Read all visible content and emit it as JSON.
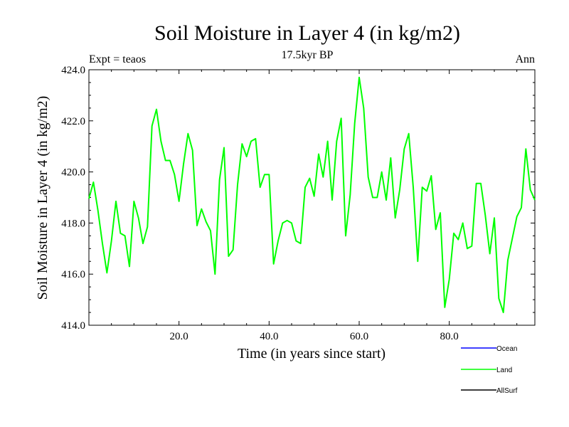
{
  "chart_data": {
    "type": "line",
    "title": "Soil Moisture in Layer 4 (in kg/m2)",
    "subtitle": "17.5kyr BP",
    "left_label": "Expt = teaos",
    "right_label": "Ann",
    "xlabel": "Time (in years since start)",
    "ylabel": "Soil Moisture in Layer 4 (in kg/m2)",
    "xlim": [
      0,
      99
    ],
    "ylim": [
      414,
      424
    ],
    "x_ticks": [
      20,
      40,
      60,
      80
    ],
    "x_tick_labels": [
      "20.0",
      "40.0",
      "60.0",
      "80.0"
    ],
    "y_ticks": [
      414,
      416,
      418,
      420,
      422,
      424
    ],
    "y_tick_labels": [
      "414.0",
      "416.0",
      "418.0",
      "420.0",
      "422.0",
      "424.0"
    ],
    "legend": [
      {
        "name": "Ocean",
        "color": "#0000ff"
      },
      {
        "name": "Land",
        "color": "#00ff00"
      },
      {
        "name": "AllSurf",
        "color": "#000000"
      }
    ],
    "series": [
      {
        "name": "Land",
        "color": "#00ff00",
        "x": [
          0,
          1,
          2,
          3,
          4,
          5,
          6,
          7,
          8,
          9,
          10,
          11,
          12,
          13,
          14,
          15,
          16,
          17,
          18,
          19,
          20,
          21,
          22,
          23,
          24,
          25,
          26,
          27,
          28,
          29,
          30,
          31,
          32,
          33,
          34,
          35,
          36,
          37,
          38,
          39,
          40,
          41,
          42,
          43,
          44,
          45,
          46,
          47,
          48,
          49,
          50,
          51,
          52,
          53,
          54,
          55,
          56,
          57,
          58,
          59,
          60,
          61,
          62,
          63,
          64,
          65,
          66,
          67,
          68,
          69,
          70,
          71,
          72,
          73,
          74,
          75,
          76,
          77,
          78,
          79,
          80,
          81,
          82,
          83,
          84,
          85,
          86,
          87,
          88,
          89,
          90,
          91,
          92,
          93,
          94,
          95,
          96,
          97,
          98,
          99
        ],
        "values": [
          418.95,
          419.6,
          418.5,
          417.2,
          416.05,
          417.3,
          418.85,
          417.6,
          417.5,
          416.3,
          418.85,
          418.2,
          417.2,
          417.85,
          421.8,
          422.45,
          421.2,
          420.45,
          420.45,
          419.9,
          418.85,
          420.3,
          421.5,
          420.85,
          417.9,
          418.55,
          418.05,
          417.7,
          416.0,
          419.7,
          420.95,
          416.7,
          416.95,
          419.5,
          421.1,
          420.6,
          421.2,
          421.3,
          419.4,
          419.9,
          419.9,
          416.4,
          417.3,
          418.0,
          418.1,
          418.0,
          417.3,
          417.2,
          419.4,
          419.75,
          419.05,
          420.7,
          419.8,
          421.2,
          418.9,
          421.2,
          422.1,
          417.5,
          419.1,
          421.9,
          423.7,
          422.5,
          419.8,
          419.0,
          419.0,
          420.0,
          418.9,
          420.55,
          418.2,
          419.3,
          420.9,
          421.5,
          419.4,
          416.5,
          419.4,
          419.25,
          419.85,
          417.75,
          418.4,
          414.7,
          415.8,
          417.6,
          417.35,
          418.0,
          417.0,
          417.1,
          419.55,
          419.55,
          418.3,
          416.8,
          418.2,
          415.05,
          414.5,
          416.55,
          417.4,
          418.25,
          418.6,
          420.9,
          419.3,
          418.9
        ]
      }
    ]
  }
}
